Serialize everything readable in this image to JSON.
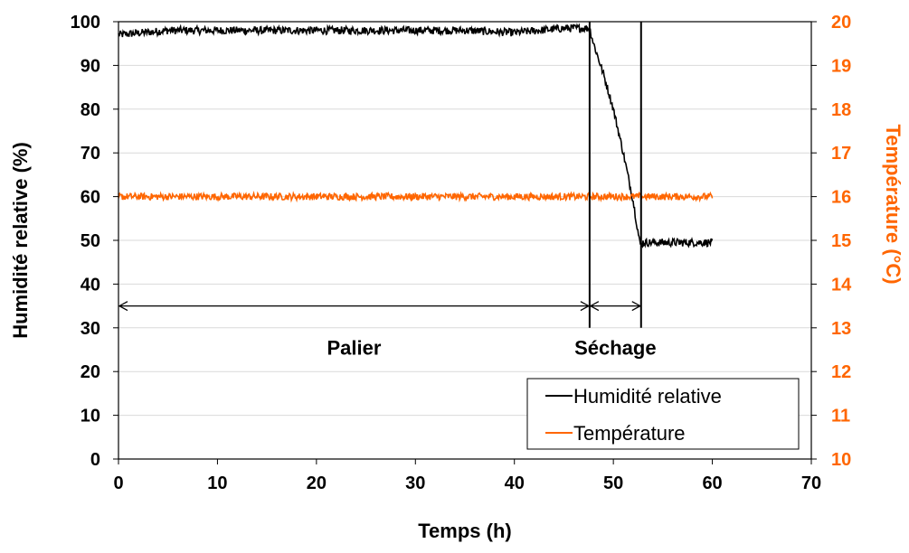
{
  "chart_data": {
    "type": "line",
    "xlabel": "Temps (h)",
    "ylabel": "Humidité relative (%)",
    "y2label": "Température (°C)",
    "xlim": [
      0,
      70
    ],
    "xticks": [
      0,
      10,
      20,
      30,
      40,
      50,
      60,
      70
    ],
    "ylim": [
      0,
      100
    ],
    "yticks": [
      0,
      10,
      20,
      30,
      40,
      50,
      60,
      70,
      80,
      90,
      100
    ],
    "y2lim": [
      10,
      20
    ],
    "y2ticks": [
      10,
      11,
      12,
      13,
      14,
      15,
      16,
      17,
      18,
      19,
      20
    ],
    "grid": "horizontal",
    "legend_position": "bottom-right",
    "series": [
      {
        "name": "Humidité relative",
        "axis": "left",
        "color": "#000000",
        "x": [
          0,
          5,
          10,
          15,
          20,
          25,
          30,
          35,
          40,
          45,
          47.6,
          48,
          49,
          50,
          51,
          52,
          52.7,
          53,
          55,
          57,
          60
        ],
        "y": [
          97,
          98,
          98,
          98,
          98,
          98,
          98,
          98,
          97.5,
          98.5,
          98.5,
          95,
          88,
          80,
          70,
          59,
          49,
          49.5,
          49.5,
          49.5,
          49.5
        ]
      },
      {
        "name": "Température",
        "axis": "right",
        "color": "#FF6600",
        "x": [
          0,
          5,
          10,
          15,
          20,
          25,
          30,
          35,
          40,
          45,
          50,
          55,
          60
        ],
        "y": [
          16,
          16,
          16,
          16,
          16,
          16,
          16,
          16,
          16,
          16,
          16,
          16,
          16
        ]
      }
    ],
    "annotations": [
      {
        "text": "Palier",
        "x_start": 0,
        "x_end": 47.6,
        "y": 35
      },
      {
        "text": "Séchage",
        "x_start": 47.6,
        "x_end": 52.8,
        "y": 35
      }
    ],
    "vertical_lines_x": [
      47.6,
      52.8
    ]
  }
}
